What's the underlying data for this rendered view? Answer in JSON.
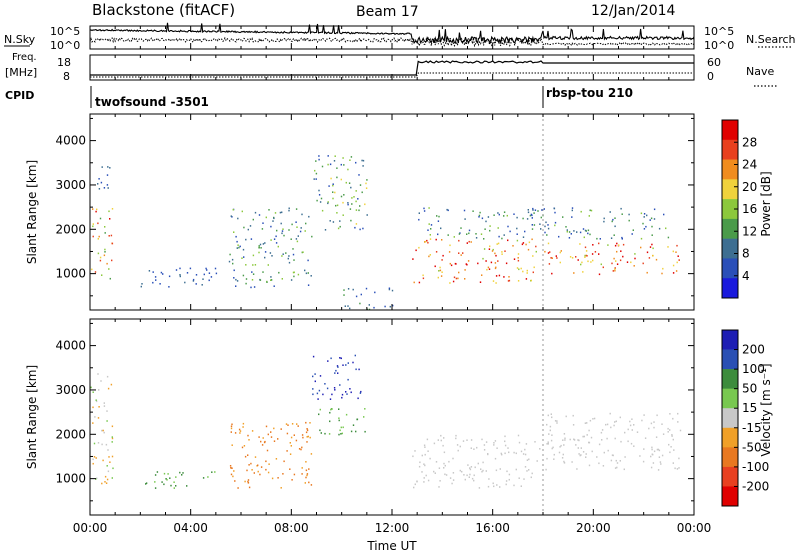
{
  "header": {
    "title": "Blackstone (fitACF)",
    "beam": "Beam 17",
    "date": "12/Jan/2014"
  },
  "panels": {
    "nsky": {
      "label": "N.Sky",
      "right_label": "N.Search",
      "ticks_left": [
        "10^5",
        "10^0"
      ],
      "ticks_right": [
        "10^5",
        "10^0"
      ]
    },
    "freq": {
      "label_line1": "Freq.",
      "label_line2": "[MHz]",
      "ticks_left": [
        "18",
        "8"
      ],
      "ticks_right": [
        "60",
        "0"
      ],
      "right_label": "Nave"
    },
    "cpid": {
      "label": "CPID",
      "programs": [
        {
          "name": "twofsound -3501",
          "start_hour": 0
        },
        {
          "name": "rbsp-tou 210",
          "start_hour": 18
        }
      ]
    }
  },
  "colors": {
    "power": [
      "#1a1adc",
      "#2a4fb8",
      "#3d6e91",
      "#4a9b4a",
      "#8cc83c",
      "#f0d23c",
      "#f08c1e",
      "#e8401e",
      "#e00000"
    ],
    "velocity": [
      "#1e1eb4",
      "#2a50b4",
      "#3c8c3c",
      "#78c850",
      "#c8c8c8",
      "#f0a028",
      "#e87820",
      "#e84020",
      "#e00000"
    ],
    "gray_scatter": "#c8c8bc"
  },
  "chart_data": [
    {
      "type": "heatmap",
      "name": "power",
      "ylabel": "Slant Range [km]",
      "ylim": [
        180,
        4600
      ],
      "yticks": [
        1000,
        2000,
        3000,
        4000
      ],
      "colorbar": {
        "label": "Power [dB]",
        "ticks": [
          "4",
          "8",
          "12",
          "16",
          "20",
          "24",
          "28"
        ],
        "range": [
          0,
          30
        ]
      },
      "regions": [
        {
          "hours": [
            0.0,
            0.9
          ],
          "range_km": [
            900,
            2500
          ],
          "value_db": [
            10,
            28
          ]
        },
        {
          "hours": [
            0.2,
            0.9
          ],
          "range_km": [
            2800,
            3500
          ],
          "value_db": [
            4,
            10
          ]
        },
        {
          "hours": [
            2.0,
            5.0
          ],
          "range_km": [
            700,
            1200
          ],
          "value_db": [
            4,
            8
          ]
        },
        {
          "hours": [
            5.5,
            8.8
          ],
          "range_km": [
            700,
            2500
          ],
          "value_db": [
            4,
            16
          ]
        },
        {
          "hours": [
            8.8,
            11.0
          ],
          "range_km": [
            2000,
            3700
          ],
          "value_db": [
            4,
            18
          ]
        },
        {
          "hours": [
            10.0,
            12.0
          ],
          "range_km": [
            200,
            700
          ],
          "value_db": [
            4,
            12
          ]
        },
        {
          "hours": [
            12.8,
            17.9
          ],
          "range_km": [
            800,
            1800
          ],
          "value_db": [
            16,
            30
          ]
        },
        {
          "hours": [
            18.0,
            23.5
          ],
          "range_km": [
            1000,
            1700
          ],
          "value_db": [
            16,
            30
          ]
        },
        {
          "hours": [
            13.0,
            23.0
          ],
          "range_km": [
            1800,
            2500
          ],
          "value_db": [
            4,
            14
          ]
        }
      ]
    },
    {
      "type": "heatmap",
      "name": "velocity",
      "ylabel": "Slant Range [km]",
      "xlabel": "Time UT",
      "ylim": [
        180,
        4600
      ],
      "yticks": [
        1000,
        2000,
        3000,
        4000
      ],
      "xlim": [
        0,
        24
      ],
      "xticks": [
        "00:00",
        "04:00",
        "08:00",
        "12:00",
        "16:00",
        "20:00",
        "00:00"
      ],
      "colorbar": {
        "label": "Velocity [m s⁻¹]",
        "ticks": [
          "200",
          "100",
          "50",
          "15",
          "-15",
          "-50",
          "-100",
          "-200"
        ],
        "range": [
          -250,
          250
        ]
      },
      "regions": [
        {
          "hours": [
            0.0,
            0.9
          ],
          "range_km": [
            900,
            3400
          ],
          "value_ms": [
            -50,
            50
          ]
        },
        {
          "hours": [
            2.0,
            5.0
          ],
          "range_km": [
            800,
            1200
          ],
          "value_ms": [
            15,
            100
          ]
        },
        {
          "hours": [
            5.5,
            8.8
          ],
          "range_km": [
            800,
            2300
          ],
          "value_ms": [
            -100,
            -15
          ]
        },
        {
          "hours": [
            8.8,
            10.8
          ],
          "range_km": [
            2800,
            3800
          ],
          "value_ms": [
            100,
            250
          ]
        },
        {
          "hours": [
            8.8,
            11.0
          ],
          "range_km": [
            2000,
            2600
          ],
          "value_ms": [
            15,
            100
          ]
        },
        {
          "hours": [
            12.8,
            17.9
          ],
          "range_km": [
            800,
            2000
          ],
          "value_ms": [
            -15,
            15
          ]
        },
        {
          "hours": [
            18.0,
            23.5
          ],
          "range_km": [
            1200,
            2500
          ],
          "value_ms": [
            -15,
            15
          ]
        }
      ]
    }
  ]
}
